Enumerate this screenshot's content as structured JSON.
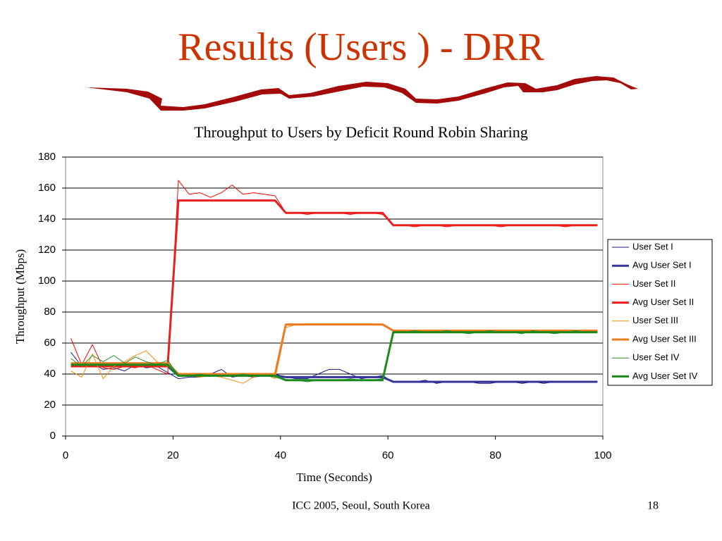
{
  "slide_title": "Results (Users ) - DRR",
  "footer": "ICC 2005, Seoul, South Korea",
  "page_number": "18",
  "chart_data": {
    "type": "line",
    "title": "Throughput to Users by Deficit Round Robin Sharing",
    "x_label": "Time (Seconds)",
    "y_label": "Throughput (Mbps)",
    "xlim": [
      0,
      100
    ],
    "xticks": [
      0,
      20,
      40,
      60,
      80,
      100
    ],
    "ylim": [
      0,
      180
    ],
    "yticks": [
      0,
      20,
      40,
      60,
      80,
      100,
      120,
      140,
      160,
      180
    ],
    "grid": true,
    "legend": "right",
    "x": [
      1,
      3,
      5,
      7,
      9,
      11,
      13,
      15,
      17,
      19,
      21,
      23,
      25,
      27,
      29,
      31,
      33,
      35,
      37,
      39,
      41,
      43,
      45,
      47,
      49,
      51,
      53,
      55,
      57,
      59,
      61,
      63,
      65,
      67,
      69,
      71,
      73,
      75,
      77,
      79,
      81,
      83,
      85,
      87,
      89,
      91,
      93,
      95,
      97,
      99
    ],
    "series": [
      {
        "name": "User Set I",
        "color": "#1a1a80",
        "line_width": 1,
        "values": [
          54,
          45,
          47,
          43,
          44,
          42,
          46,
          44,
          45,
          41,
          37,
          38,
          38,
          40,
          43,
          38,
          39,
          38,
          39,
          40,
          38,
          37,
          37,
          40,
          43,
          43,
          40,
          37,
          38,
          39,
          35,
          35,
          35,
          36,
          34,
          35,
          35,
          35,
          34,
          34,
          35,
          35,
          34,
          35,
          34,
          35,
          35,
          35,
          35,
          35
        ]
      },
      {
        "name": "Avg User Set I",
        "color": "#333399",
        "line_width": 3,
        "values": [
          45,
          45,
          45,
          45,
          45,
          45,
          45,
          45,
          45,
          45,
          39,
          39,
          39,
          39,
          39,
          39,
          39,
          39,
          39,
          39,
          38,
          38,
          38,
          38,
          38,
          38,
          38,
          38,
          38,
          38,
          35,
          35,
          35,
          35,
          35,
          35,
          35,
          35,
          35,
          35,
          35,
          35,
          35,
          35,
          35,
          35,
          35,
          35,
          35,
          35
        ]
      },
      {
        "name": "User Set II",
        "color": "#ff0000",
        "line_width": 1,
        "values": [
          63,
          46,
          59,
          44,
          43,
          45,
          44,
          46,
          43,
          40,
          165,
          156,
          157,
          154,
          157,
          162,
          156,
          157,
          156,
          155,
          144,
          144,
          143,
          144,
          144,
          144,
          143,
          144,
          144,
          143,
          136,
          136,
          135,
          136,
          136,
          135,
          136,
          136,
          136,
          136,
          135,
          136,
          136,
          136,
          136,
          136,
          135,
          136,
          136,
          136
        ]
      },
      {
        "name": "Avg User Set II",
        "color": "#e8201e",
        "line_width": 3,
        "values": [
          45,
          45,
          45,
          45,
          45,
          45,
          45,
          45,
          45,
          45,
          152,
          152,
          152,
          152,
          152,
          152,
          152,
          152,
          152,
          152,
          144,
          144,
          144,
          144,
          144,
          144,
          144,
          144,
          144,
          144,
          136,
          136,
          136,
          136,
          136,
          136,
          136,
          136,
          136,
          136,
          136,
          136,
          136,
          136,
          136,
          136,
          136,
          136,
          136,
          136
        ]
      },
      {
        "name": "User Set III",
        "color": "#ff8c00",
        "line_width": 1,
        "values": [
          42,
          38,
          53,
          37,
          45,
          48,
          52,
          55,
          48,
          45,
          40,
          39,
          38,
          39,
          38,
          36,
          34,
          38,
          40,
          37,
          70,
          72,
          72,
          72,
          72,
          72,
          72,
          72,
          72,
          72,
          68,
          67,
          68,
          68,
          67,
          68,
          68,
          67,
          68,
          68,
          67,
          68,
          68,
          67,
          68,
          68,
          67,
          68,
          68,
          68
        ]
      },
      {
        "name": "Avg User Set III",
        "color": "#f07b1e",
        "line_width": 3,
        "values": [
          47,
          47,
          47,
          47,
          47,
          47,
          47,
          47,
          47,
          47,
          40,
          40,
          40,
          40,
          40,
          40,
          40,
          40,
          40,
          40,
          72,
          72,
          72,
          72,
          72,
          72,
          72,
          72,
          72,
          72,
          68,
          68,
          68,
          68,
          68,
          68,
          68,
          68,
          68,
          68,
          68,
          68,
          68,
          68,
          68,
          68,
          68,
          68,
          68,
          68
        ]
      },
      {
        "name": "User Set IV",
        "color": "#2e8b2e",
        "line_width": 1,
        "values": [
          50,
          45,
          52,
          48,
          52,
          47,
          51,
          48,
          46,
          49,
          39,
          39,
          40,
          39,
          39,
          39,
          40,
          39,
          39,
          38,
          36,
          36,
          35,
          36,
          36,
          36,
          37,
          36,
          36,
          37,
          67,
          67,
          68,
          67,
          67,
          68,
          67,
          66,
          67,
          68,
          67,
          67,
          66,
          68,
          67,
          66,
          67,
          68,
          67,
          67
        ]
      },
      {
        "name": "Avg User Set IV",
        "color": "#1a8a1a",
        "line_width": 3,
        "values": [
          46,
          46,
          46,
          46,
          46,
          46,
          46,
          46,
          46,
          46,
          39,
          39,
          39,
          39,
          39,
          39,
          39,
          39,
          39,
          39,
          36,
          36,
          36,
          36,
          36,
          36,
          36,
          36,
          36,
          36,
          67,
          67,
          67,
          67,
          67,
          67,
          67,
          67,
          67,
          67,
          67,
          67,
          67,
          67,
          67,
          67,
          67,
          67,
          67,
          67
        ]
      }
    ]
  }
}
